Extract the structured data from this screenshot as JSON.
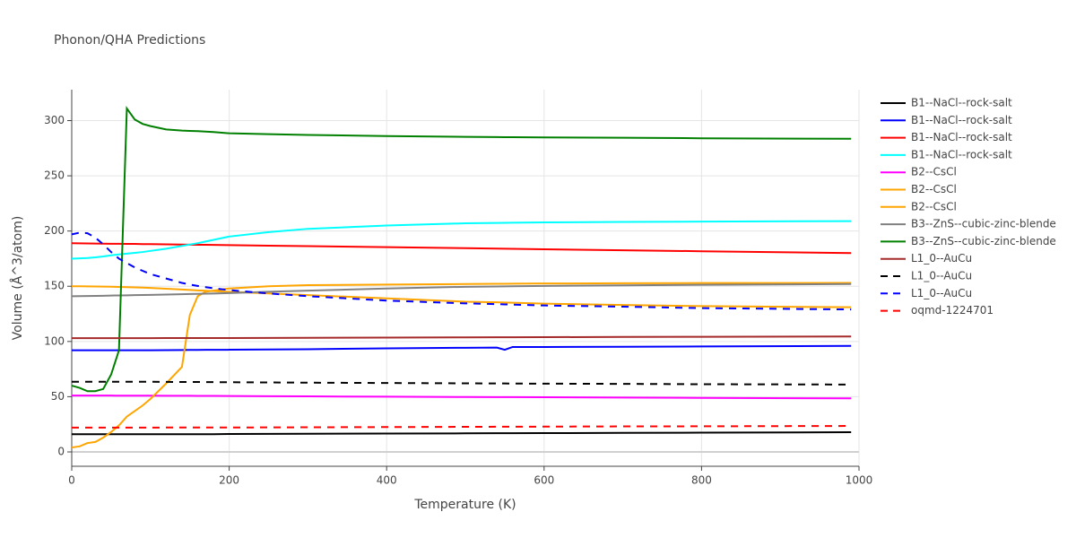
{
  "chart_data": {
    "type": "line",
    "title": "Phonon/QHA Predictions",
    "x_label": "Temperature (K)",
    "y_label": "Volume (Å^3/atom)",
    "grid": true,
    "legend": "right",
    "xlim": [
      0,
      1000
    ],
    "xticks": [
      0,
      200,
      400,
      600,
      800,
      1000
    ],
    "ylim": [
      -13,
      328
    ],
    "yticks": [
      0,
      50,
      100,
      150,
      200,
      250,
      300
    ],
    "x": [
      0,
      10,
      20,
      30,
      40,
      50,
      60,
      70,
      80,
      90,
      100,
      120,
      140,
      150,
      160,
      170,
      180,
      200,
      250,
      300,
      400,
      500,
      540,
      550,
      560,
      600,
      700,
      800,
      990
    ],
    "series": [
      {
        "name": "B1--NaCl--rock-salt",
        "color": "#000000",
        "line_style": "solid",
        "values": [
          16,
          16,
          16,
          16,
          16,
          16,
          16,
          16,
          16,
          16,
          16,
          16,
          16,
          16,
          16,
          16,
          16,
          16.2,
          16.3,
          16.4,
          16.6,
          16.8,
          16.9,
          16.9,
          16.9,
          17,
          17.2,
          17.4,
          17.8
        ]
      },
      {
        "name": "B1--NaCl--rock-salt",
        "color": "#0000ff",
        "line_style": "solid",
        "values": [
          92,
          92,
          92,
          92,
          92,
          92,
          92,
          92,
          92,
          92,
          92,
          92.1,
          92.2,
          92.3,
          92.3,
          92.4,
          92.4,
          92.5,
          92.8,
          93,
          93.8,
          94.3,
          94.5,
          92.5,
          95,
          95,
          95.2,
          95.5,
          96
        ]
      },
      {
        "name": "B1--NaCl--rock-salt",
        "color": "#ff0000",
        "line_style": "solid",
        "values": [
          189,
          188.9,
          188.8,
          188.7,
          188.6,
          188.5,
          188.5,
          188.4,
          188.3,
          188.2,
          188.1,
          187.9,
          187.7,
          187.6,
          187.5,
          187.5,
          187.4,
          187.2,
          186.7,
          186.3,
          185.4,
          184.5,
          184.1,
          184,
          183.9,
          183.5,
          182.6,
          181.7,
          180
        ]
      },
      {
        "name": "B1--NaCl--rock-salt",
        "color": "#00ffff",
        "line_style": "solid",
        "values": [
          175,
          175.3,
          175.6,
          176.2,
          177,
          178,
          178.8,
          179.5,
          180.2,
          181,
          182,
          184,
          186.5,
          187.8,
          189,
          190.5,
          192,
          195,
          199,
          202,
          205,
          207,
          207.3,
          207.4,
          207.5,
          207.8,
          208.2,
          208.5,
          209
        ]
      },
      {
        "name": "B2--CsCl",
        "color": "#ff00ff",
        "line_style": "solid",
        "values": [
          51,
          51,
          51,
          51,
          51,
          51,
          50.9,
          50.9,
          50.9,
          50.9,
          50.9,
          50.8,
          50.8,
          50.8,
          50.7,
          50.7,
          50.7,
          50.6,
          50.4,
          50.3,
          50,
          49.7,
          49.6,
          49.6,
          49.6,
          49.5,
          49.2,
          48.9,
          48.5
        ]
      },
      {
        "name": "B2--CsCl",
        "color": "#ffa500",
        "line_style": "solid",
        "values": [
          150,
          150,
          149.9,
          149.8,
          149.7,
          149.6,
          149.4,
          149.2,
          149,
          148.8,
          148.5,
          147.8,
          147,
          146.6,
          146.2,
          145.9,
          145.6,
          145,
          143.5,
          142,
          139,
          136,
          135.5,
          135.3,
          135.1,
          134.3,
          133,
          132,
          131
        ]
      },
      {
        "name": "B2--CsCl",
        "color": "#ffa500",
        "line_style": "solid",
        "values": [
          4,
          5,
          8,
          9,
          13,
          18,
          24,
          32,
          37,
          42,
          48,
          62,
          77,
          124,
          141,
          145,
          146,
          148,
          150,
          151,
          151.5,
          152,
          152.2,
          152.2,
          152.3,
          152.5,
          152.7,
          152.9,
          153
        ]
      },
      {
        "name": "B3--ZnS--cubic-zinc-blende",
        "color": "#808080",
        "line_style": "solid",
        "values": [
          141,
          141.1,
          141.2,
          141.3,
          141.4,
          141.6,
          141.7,
          141.8,
          142,
          142.1,
          142.2,
          142.5,
          142.8,
          143,
          143.1,
          143.3,
          143.4,
          143.8,
          145,
          146,
          148,
          149.5,
          149.8,
          149.9,
          150,
          150.3,
          150.8,
          151.3,
          152
        ]
      },
      {
        "name": "B3--ZnS--cubic-zinc-blende",
        "color": "#008000",
        "line_style": "solid",
        "values": [
          60,
          58,
          55,
          55,
          57,
          70,
          92,
          311,
          301,
          297,
          295,
          292,
          291,
          290.7,
          290.4,
          290,
          289.6,
          288.5,
          287.7,
          287,
          286,
          285.3,
          285.1,
          285,
          285,
          284.8,
          284.5,
          284,
          283.5
        ]
      },
      {
        "name": "L1_0--AuCu",
        "color": "#a52a2a",
        "line_style": "solid",
        "values": [
          103,
          103,
          103,
          103,
          103,
          103,
          103,
          103,
          103,
          103,
          103,
          103.1,
          103.1,
          103.1,
          103.1,
          103.1,
          103.1,
          103.1,
          103.2,
          103.3,
          103.5,
          103.7,
          103.8,
          103.8,
          103.8,
          103.9,
          104.1,
          104.2,
          104.5
        ]
      },
      {
        "name": "L1_0--AuCu",
        "color": "#000000",
        "line_style": "dash",
        "values": [
          63.5,
          63.5,
          63.5,
          63.5,
          63.5,
          63.5,
          63.5,
          63.5,
          63.5,
          63.5,
          63.5,
          63.4,
          63.3,
          63.3,
          63.3,
          63.2,
          63.2,
          63.1,
          62.9,
          62.7,
          62.4,
          62.1,
          62,
          62,
          61.9,
          61.8,
          61.6,
          61.3,
          61
        ]
      },
      {
        "name": "L1_0--AuCu",
        "color": "#0000ff",
        "line_style": "dash",
        "values": [
          197,
          198.5,
          198,
          194,
          188,
          181,
          175,
          171,
          167,
          164,
          161,
          157,
          153,
          151.5,
          150.3,
          149.2,
          148.2,
          146.5,
          143.5,
          141,
          137,
          134.5,
          133.8,
          133.6,
          133.4,
          132.6,
          131.5,
          130.2,
          129
        ]
      },
      {
        "name": "oqmd-1224701",
        "color": "#ff0000",
        "line_style": "dash",
        "values": [
          22,
          22,
          22,
          22,
          22,
          22,
          22,
          22,
          22,
          22,
          22,
          22.1,
          22.1,
          22.1,
          22.1,
          22.1,
          22.1,
          22.1,
          22.2,
          22.3,
          22.5,
          22.7,
          22.8,
          22.8,
          22.8,
          22.9,
          23.1,
          23.2,
          23.5
        ]
      }
    ]
  }
}
